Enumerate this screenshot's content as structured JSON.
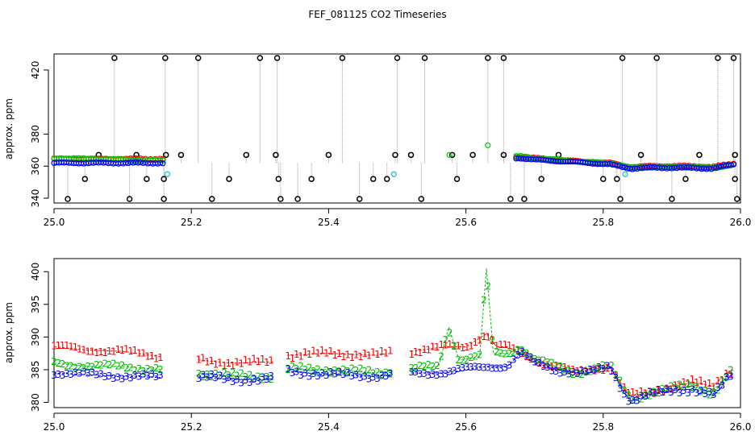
{
  "chart_data": [
    {
      "type": "scatter",
      "title": "FEF_081125  CO2 Timeseries",
      "xlabel": "",
      "ylabel": "approx. ppm",
      "xlim": [
        25.0,
        26.0
      ],
      "ylim": [
        337,
        430
      ],
      "x_ticks": [
        {
          "value": 25.0,
          "label": "25.0"
        },
        {
          "value": 25.2,
          "label": "25.2"
        },
        {
          "value": 25.4,
          "label": "25.4"
        },
        {
          "value": 25.6,
          "label": "25.6"
        },
        {
          "value": 25.8,
          "label": "25.8"
        },
        {
          "value": 26.0,
          "label": "26.0"
        }
      ],
      "y_ticks": [
        {
          "value": 340,
          "label": "340"
        },
        {
          "value": 360,
          "label": "360"
        },
        {
          "value": 380,
          "label": "380"
        },
        {
          "value": 420,
          "label": "420"
        }
      ],
      "spikes_high": [
        25.088,
        25.162,
        25.21,
        25.3,
        25.325,
        25.42,
        25.5,
        25.54,
        25.632,
        25.655,
        25.828,
        25.878,
        25.967,
        25.99
      ],
      "spikes_low": [
        25.02,
        25.11,
        25.16,
        25.23,
        25.33,
        25.355,
        25.445,
        25.535,
        25.665,
        25.685,
        25.825,
        25.9,
        25.995
      ],
      "spikes_mid_high": [
        25.065,
        25.12,
        25.163,
        25.185,
        25.28,
        25.323,
        25.4,
        25.497,
        25.52,
        25.58,
        25.61,
        25.655,
        25.735,
        25.855,
        25.94,
        25.992
      ],
      "spikes_mid_low": [
        25.045,
        25.135,
        25.16,
        25.255,
        25.327,
        25.375,
        25.465,
        25.485,
        25.587,
        25.71,
        25.8,
        25.82,
        25.92,
        25.992
      ],
      "cyan_points": [
        {
          "x": 25.165,
          "y": 355
        },
        {
          "x": 25.495,
          "y": 355
        },
        {
          "x": 25.832,
          "y": 355
        }
      ],
      "green_outliers": [
        {
          "x": 25.576,
          "y": 367
        },
        {
          "x": 25.632,
          "y": 373
        }
      ],
      "series": [
        {
          "name": "red",
          "color": "#ff0000",
          "x": [
            25.0,
            25.16,
            25.161,
            25.325,
            25.326,
            25.49,
            25.491,
            25.66,
            25.661,
            25.67,
            25.68,
            25.7,
            25.78,
            25.81,
            25.84,
            25.87,
            25.92,
            25.96,
            25.99
          ],
          "values": [
            364.5,
            364.5,
            null,
            363.5,
            null,
            364,
            null,
            365,
            null,
            366,
            366,
            365,
            362.5,
            362,
            359.5,
            360,
            360,
            359.5,
            361.5
          ]
        },
        {
          "name": "green",
          "color": "#00cc00",
          "x": [
            25.0,
            25.16,
            25.161,
            25.325,
            25.326,
            25.49,
            25.491,
            25.66,
            25.661,
            25.67,
            25.68,
            25.7,
            25.78,
            25.81,
            25.84,
            25.87,
            25.92,
            25.96,
            25.99
          ],
          "values": [
            365,
            363.5,
            null,
            363,
            null,
            363.5,
            null,
            364,
            null,
            366,
            366,
            365,
            362.5,
            362,
            359,
            359.5,
            359.5,
            359,
            361
          ]
        },
        {
          "name": "blue",
          "color": "#0000ff",
          "x": [
            25.0,
            25.16,
            25.161,
            25.325,
            25.326,
            25.49,
            25.491,
            25.66,
            25.661,
            25.67,
            25.68,
            25.7,
            25.78,
            25.81,
            25.84,
            25.87,
            25.92,
            25.96,
            25.99
          ],
          "values": [
            362,
            362,
            null,
            362,
            null,
            362.5,
            null,
            363,
            null,
            365,
            365,
            364,
            362,
            361,
            358.5,
            359,
            359,
            358.5,
            361
          ]
        }
      ]
    },
    {
      "type": "line",
      "title": "",
      "xlabel": "",
      "ylabel": "approx. ppm",
      "xlim": [
        25.0,
        26.0
      ],
      "ylim": [
        379.2,
        402
      ],
      "x_ticks": [
        {
          "value": 25.0,
          "label": "25.0"
        },
        {
          "value": 25.2,
          "label": "25.2"
        },
        {
          "value": 25.4,
          "label": "25.4"
        },
        {
          "value": 25.6,
          "label": "25.6"
        },
        {
          "value": 25.8,
          "label": "25.8"
        },
        {
          "value": 26.0,
          "label": "26.0"
        }
      ],
      "y_ticks": [
        {
          "value": 380,
          "label": "380"
        },
        {
          "value": 385,
          "label": "385"
        },
        {
          "value": 390,
          "label": "390"
        },
        {
          "value": 395,
          "label": "395"
        },
        {
          "value": 400,
          "label": "400"
        }
      ],
      "series": [
        {
          "name": "1",
          "label": "1",
          "color": "#ff0000",
          "x": [
            25.0,
            25.05,
            25.1,
            25.155,
            25.156,
            25.21,
            25.26,
            25.32,
            25.321,
            25.34,
            25.4,
            25.47,
            25.49,
            25.491,
            25.52,
            25.57,
            25.6,
            25.63,
            25.645,
            25.66,
            25.68,
            25.7,
            25.73,
            25.76,
            25.78,
            25.81,
            25.83,
            25.84,
            25.87,
            25.9,
            25.93,
            25.96,
            25.97,
            25.98,
            25.99
          ],
          "values": [
            388.5,
            388,
            387.8,
            387,
            null,
            386.5,
            386,
            386.2,
            null,
            387.2,
            387.5,
            387.2,
            387.5,
            null,
            387.8,
            388.5,
            388.5,
            390.5,
            388.5,
            388.5,
            387.5,
            386.5,
            385.5,
            384.5,
            385,
            385.5,
            382,
            381,
            381.5,
            382.5,
            383,
            382.5,
            383.5,
            384.5,
            385
          ]
        },
        {
          "name": "2",
          "label": "2",
          "color": "#00bb00",
          "x": [
            25.0,
            25.05,
            25.1,
            25.155,
            25.156,
            25.21,
            25.26,
            25.32,
            25.321,
            25.34,
            25.4,
            25.47,
            25.49,
            25.491,
            25.52,
            25.56,
            25.575,
            25.59,
            25.62,
            25.63,
            25.64,
            25.66,
            25.68,
            25.7,
            25.73,
            25.76,
            25.78,
            25.81,
            25.83,
            25.84,
            25.87,
            25.9,
            25.93,
            25.96,
            25.97,
            25.98,
            25.99
          ],
          "values": [
            386,
            385.5,
            385.5,
            385,
            null,
            384.5,
            384,
            384,
            null,
            385,
            385,
            384.5,
            384.8,
            null,
            385,
            385.5,
            391.5,
            386.5,
            387,
            400.5,
            387.5,
            387.5,
            388.5,
            386.5,
            385.5,
            384.5,
            385,
            385.5,
            382,
            380.5,
            381.5,
            382,
            382.5,
            381.5,
            382.5,
            384,
            384.8
          ]
        },
        {
          "name": "3",
          "label": "3",
          "color": "#0000ff",
          "x": [
            25.0,
            25.05,
            25.1,
            25.155,
            25.156,
            25.21,
            25.26,
            25.32,
            25.321,
            25.34,
            25.4,
            25.47,
            25.49,
            25.491,
            25.52,
            25.57,
            25.6,
            25.63,
            25.66,
            25.68,
            25.7,
            25.73,
            25.76,
            25.78,
            25.81,
            25.83,
            25.84,
            25.87,
            25.9,
            25.93,
            25.96,
            25.97,
            25.98,
            25.99
          ],
          "values": [
            384.5,
            384.2,
            384,
            383.8,
            null,
            383.8,
            383.5,
            383.5,
            null,
            384.8,
            384.2,
            384,
            384.2,
            null,
            384.5,
            384.5,
            385,
            385.5,
            385.5,
            387.5,
            386,
            385,
            384.5,
            384.5,
            385.5,
            381.5,
            380.2,
            381.2,
            381.8,
            382,
            381,
            382,
            383.5,
            384.5
          ]
        }
      ]
    }
  ]
}
